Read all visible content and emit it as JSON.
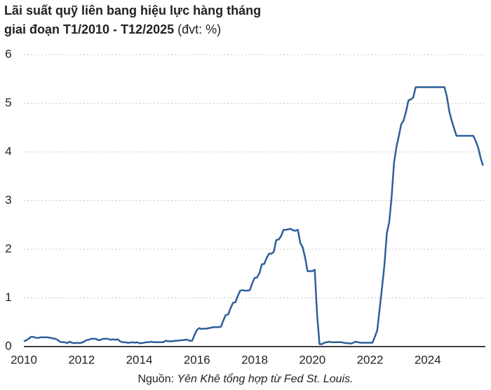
{
  "chart_data": {
    "type": "line",
    "title": [
      "Lãi suất quỹ liên bang hiệu lực hàng tháng",
      "giai đoạn T1/2010 - T12/2025"
    ],
    "unit": "(đvt: %)",
    "source": [
      "Nguồn:",
      "Yên Khê tổng hợp từ Fed St. Louis."
    ],
    "categories": [
      "2010",
      null,
      null,
      null,
      null,
      null,
      null,
      null,
      null,
      null,
      null,
      null,
      null,
      null,
      null,
      null,
      null,
      null,
      null,
      null,
      null,
      null,
      null,
      null,
      "2012",
      null,
      null,
      null,
      null,
      null,
      null,
      null,
      null,
      null,
      null,
      null,
      null,
      null,
      null,
      null,
      null,
      null,
      null,
      null,
      null,
      null,
      null,
      null,
      "2014",
      null,
      null,
      null,
      null,
      null,
      null,
      null,
      null,
      null,
      null,
      null,
      null,
      null,
      null,
      null,
      null,
      null,
      null,
      null,
      null,
      null,
      null,
      null,
      "2016",
      null,
      null,
      null,
      null,
      null,
      null,
      null,
      null,
      null,
      null,
      null,
      null,
      null,
      null,
      null,
      null,
      null,
      null,
      null,
      null,
      null,
      null,
      null,
      "2018",
      null,
      null,
      null,
      null,
      null,
      null,
      null,
      null,
      null,
      null,
      null,
      null,
      null,
      null,
      null,
      null,
      null,
      null,
      null,
      null,
      null,
      null,
      null,
      "2020",
      null,
      null,
      null,
      null,
      null,
      null,
      null,
      null,
      null,
      null,
      null,
      null,
      null,
      null,
      null,
      null,
      null,
      null,
      null,
      null,
      null,
      null,
      null,
      "2022",
      null,
      null,
      null,
      null,
      null,
      null,
      null,
      null,
      null,
      null,
      null,
      null,
      null,
      null,
      null,
      null,
      null,
      null,
      null,
      null,
      null,
      null,
      null,
      "2024",
      null,
      null,
      null,
      null,
      null,
      null,
      null,
      null,
      null,
      null,
      null,
      null,
      null,
      null,
      null,
      null,
      null,
      null,
      null,
      null,
      null,
      null,
      null
    ],
    "series": [
      {
        "color": "#2e5f9a",
        "values": [
          0.11,
          0.13,
          0.16,
          0.2,
          0.2,
          0.18,
          0.18,
          0.19,
          0.19,
          0.19,
          0.19,
          0.18,
          0.17,
          0.16,
          0.14,
          0.1,
          0.09,
          0.09,
          0.07,
          0.1,
          0.08,
          0.07,
          0.08,
          0.07,
          0.08,
          0.1,
          0.13,
          0.14,
          0.16,
          0.16,
          0.16,
          0.13,
          0.14,
          0.16,
          0.16,
          0.16,
          0.14,
          0.15,
          0.14,
          0.15,
          0.11,
          0.09,
          0.09,
          0.08,
          0.08,
          0.09,
          0.08,
          0.09,
          0.07,
          0.07,
          0.08,
          0.09,
          0.09,
          0.1,
          0.09,
          0.09,
          0.09,
          0.09,
          0.09,
          0.12,
          0.11,
          0.11,
          0.11,
          0.12,
          0.12,
          0.13,
          0.13,
          0.14,
          0.14,
          0.12,
          0.12,
          0.24,
          0.34,
          0.38,
          0.36,
          0.37,
          0.37,
          0.38,
          0.39,
          0.4,
          0.4,
          0.4,
          0.41,
          0.54,
          0.65,
          0.66,
          0.79,
          0.9,
          0.91,
          1.04,
          1.15,
          1.16,
          1.15,
          1.15,
          1.16,
          1.3,
          1.41,
          1.42,
          1.51,
          1.69,
          1.7,
          1.82,
          1.91,
          1.91,
          1.95,
          2.19,
          2.2,
          2.27,
          2.4,
          2.4,
          2.41,
          2.42,
          2.39,
          2.38,
          2.4,
          2.13,
          2.04,
          1.83,
          1.55,
          1.55,
          1.55,
          1.58,
          0.65,
          0.05,
          0.05,
          0.08,
          0.09,
          0.1,
          0.09,
          0.09,
          0.09,
          0.09,
          0.09,
          0.08,
          0.07,
          0.07,
          0.06,
          0.08,
          0.1,
          0.09,
          0.08,
          0.08,
          0.08,
          0.08,
          0.08,
          0.08,
          0.2,
          0.33,
          0.77,
          1.21,
          1.68,
          2.33,
          2.56,
          3.08,
          3.78,
          4.1,
          4.33,
          4.57,
          4.65,
          4.83,
          5.06,
          5.08,
          5.12,
          5.33,
          5.33,
          5.33,
          5.33,
          5.33,
          5.33,
          5.33,
          5.33,
          5.33,
          5.33,
          5.33,
          5.33,
          5.33,
          5.13,
          4.83,
          4.64,
          4.48,
          4.33,
          4.33,
          4.33,
          4.33,
          4.33,
          4.33,
          4.33,
          4.33,
          4.22,
          4.09,
          3.88,
          3.72
        ]
      }
    ],
    "ylim": [
      0,
      6
    ],
    "yticks": [
      0,
      1,
      2,
      3,
      4,
      5,
      6
    ],
    "grid": true
  }
}
